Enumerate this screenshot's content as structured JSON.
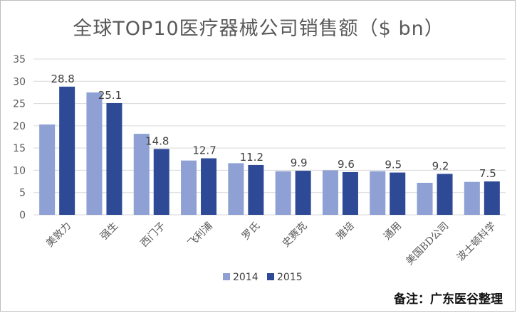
{
  "chart_data": {
    "type": "bar",
    "title": "全球TOP10医疗器械公司销售额（$ bn）",
    "categories": [
      "美敦力",
      "强生",
      "西门子",
      "飞利浦",
      "罗氏",
      "史赛克",
      "雅培",
      "通用",
      "美国BD公司",
      "波士顿科学"
    ],
    "series": [
      {
        "name": "2014",
        "color": "#8ea0d4",
        "values": [
          20.3,
          27.5,
          18.2,
          12.2,
          11.6,
          9.8,
          10.0,
          9.8,
          7.2,
          7.4
        ]
      },
      {
        "name": "2015",
        "color": "#2e4a96",
        "values": [
          28.8,
          25.1,
          14.8,
          12.7,
          11.2,
          9.9,
          9.6,
          9.5,
          9.2,
          7.5
        ]
      }
    ],
    "data_labels": [
      "28.8",
      "25.1",
      "14.8",
      "12.7",
      "11.2",
      "9.9",
      "9.6",
      "9.5",
      "9.2",
      "7.5"
    ],
    "ylim": [
      0,
      35
    ],
    "yticks": [
      0,
      5,
      10,
      15,
      20,
      25,
      30,
      35
    ],
    "grid": true,
    "legend_position": "bottom"
  },
  "note": "备注：广东医谷整理"
}
